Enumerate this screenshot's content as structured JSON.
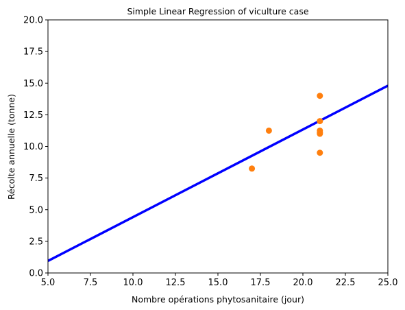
{
  "chart_data": {
    "type": "scatter",
    "title": "Simple Linear Regression of viculture case",
    "xlabel": "Nombre opérations phytosanitaire (jour)",
    "ylabel": "Récolte annuelle (tonne)",
    "xlim": [
      5.0,
      25.0
    ],
    "ylim": [
      0.0,
      20.0
    ],
    "xticks": [
      "5.0",
      "7.5",
      "10.0",
      "12.5",
      "15.0",
      "17.5",
      "20.0",
      "22.5",
      "25.0"
    ],
    "yticks": [
      "0.0",
      "2.5",
      "5.0",
      "7.5",
      "10.0",
      "12.5",
      "15.0",
      "17.5",
      "20.0"
    ],
    "grid": false,
    "series": [
      {
        "kind": "points",
        "color": "#ff7f0e",
        "x": [
          17,
          18,
          21,
          21,
          21,
          21,
          21,
          21
        ],
        "y": [
          8.25,
          11.25,
          14.0,
          12.0,
          11.25,
          11.0,
          11.1,
          9.5
        ]
      },
      {
        "kind": "line",
        "color": "#0000ff",
        "x": [
          5.0,
          25.0
        ],
        "y": [
          0.95,
          14.8
        ]
      }
    ]
  }
}
